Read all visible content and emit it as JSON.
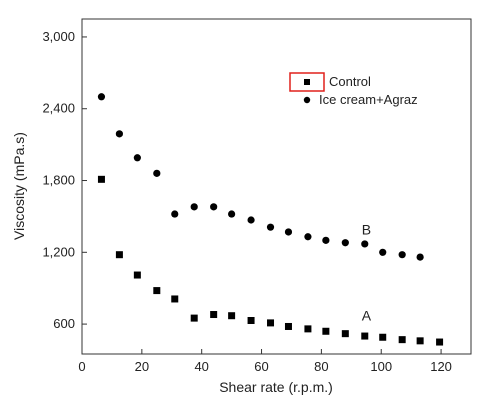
{
  "chart_data": {
    "type": "scatter",
    "xlabel": "Shear rate (r.p.m.)",
    "ylabel": "Viscosity (mPa.s)",
    "xlim": [
      0,
      130
    ],
    "ylim": [
      350,
      3150
    ],
    "xticks": [
      0,
      20,
      40,
      60,
      80,
      100,
      120
    ],
    "yticks": [
      600,
      1200,
      1800,
      2400,
      3000
    ],
    "xtick_labels": [
      "0",
      "20",
      "40",
      "60",
      "80",
      "100",
      "120"
    ],
    "ytick_labels": [
      "600",
      "1,200",
      "1,800",
      "2,400",
      "3,000"
    ],
    "grid": false,
    "legend_position": "top-right",
    "series": [
      {
        "name": "Control",
        "marker": "square",
        "color": "#000000",
        "x": [
          6.5,
          12.5,
          18.5,
          25,
          31,
          37.5,
          44,
          50,
          56.5,
          63,
          69,
          75.5,
          81.5,
          88,
          94.5,
          100.5,
          107,
          113,
          119.5
        ],
        "y": [
          1810,
          1180,
          1010,
          880,
          810,
          650,
          680,
          670,
          630,
          610,
          580,
          560,
          540,
          520,
          500,
          490,
          470,
          460,
          450
        ]
      },
      {
        "name": "Ice cream+Agraz",
        "marker": "circle",
        "color": "#000000",
        "x": [
          6.5,
          12.5,
          18.5,
          25,
          31,
          37.5,
          44,
          50,
          56.5,
          63,
          69,
          75.5,
          81.5,
          88,
          94.5,
          100.5,
          107,
          113
        ],
        "y": [
          2500,
          2190,
          1990,
          1860,
          1520,
          1580,
          1580,
          1520,
          1470,
          1410,
          1370,
          1330,
          1300,
          1280,
          1270,
          1200,
          1180,
          1160
        ]
      }
    ],
    "annotations": [
      {
        "text": "B",
        "x": 93.5,
        "y": 1350
      },
      {
        "text": "A",
        "x": 93.5,
        "y": 630
      }
    ]
  }
}
